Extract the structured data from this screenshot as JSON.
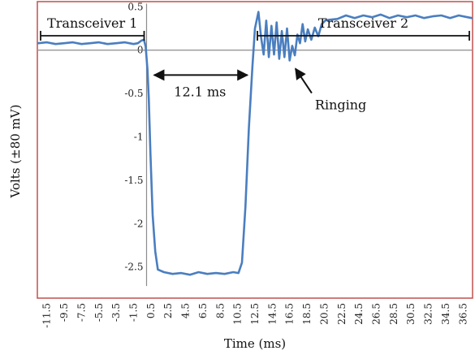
{
  "chart_data": {
    "type": "line",
    "title": "",
    "xlabel": "Time (ms)",
    "ylabel": "Volts (±80 mV)",
    "xlim": [
      -12.5,
      37.5
    ],
    "ylim": [
      -2.85,
      0.55
    ],
    "y_ticks": [
      0.5,
      0,
      -0.5,
      -1,
      -1.5,
      -2,
      -2.5
    ],
    "y_tick_labels": [
      "0.5",
      "0",
      "-0.5",
      "-1",
      "-1.5",
      "-2",
      "-2.5"
    ],
    "x_ticks": [
      -11.5,
      -9.5,
      -7.5,
      -5.5,
      -3.5,
      -1.5,
      0.5,
      2.5,
      4.5,
      6.5,
      8.5,
      10.5,
      12.5,
      14.5,
      16.5,
      18.5,
      20.5,
      22.5,
      24.5,
      26.5,
      28.5,
      30.5,
      32.5,
      34.5,
      36.5
    ],
    "x_tick_labels": [
      "-11.5",
      "-9.5",
      "-7.5",
      "-5.5",
      "-3.5",
      "-1.5",
      "0.5",
      "2.5",
      "4.5",
      "6.5",
      "8.5",
      "10.5",
      "12.5",
      "14.5",
      "16.5",
      "18.5",
      "20.5",
      "22.5",
      "24.5",
      "26.5",
      "28.5",
      "30.5",
      "32.5",
      "34.5",
      "36.5"
    ],
    "grid": false,
    "series": [
      {
        "color": "#4a7ec0",
        "x": [
          -12.5,
          -11.5,
          -10.5,
          -9.5,
          -8.5,
          -7.5,
          -6.5,
          -5.5,
          -4.5,
          -3.5,
          -2.5,
          -1.5,
          -1.0,
          -0.6,
          -0.3,
          -0.1,
          0.1,
          0.25,
          0.45,
          0.7,
          1.0,
          1.3,
          2.0,
          3.0,
          4.0,
          5.0,
          6.0,
          7.0,
          8.0,
          9.0,
          10.0,
          10.6,
          11.0,
          11.4,
          11.8,
          12.2,
          12.5,
          12.9,
          13.2,
          13.5,
          13.8,
          14.1,
          14.4,
          14.7,
          15.0,
          15.3,
          15.6,
          15.9,
          16.2,
          16.5,
          16.8,
          17.1,
          17.4,
          17.7,
          18.0,
          18.3,
          18.6,
          19.0,
          19.4,
          19.8,
          20.2,
          20.6,
          21.0,
          22.0,
          23.0,
          24.0,
          25.0,
          26.0,
          27.0,
          28.0,
          29.0,
          30.0,
          31.0,
          32.0,
          33.0,
          34.0,
          35.0,
          36.0,
          37.0,
          37.5
        ],
        "y": [
          0.08,
          0.09,
          0.07,
          0.08,
          0.09,
          0.07,
          0.08,
          0.09,
          0.07,
          0.08,
          0.09,
          0.07,
          0.08,
          0.11,
          0.12,
          0.04,
          -0.22,
          -0.55,
          -1.2,
          -1.9,
          -2.32,
          -2.53,
          -2.56,
          -2.58,
          -2.57,
          -2.59,
          -2.56,
          -2.58,
          -2.57,
          -2.58,
          -2.56,
          -2.57,
          -2.45,
          -1.8,
          -0.9,
          -0.2,
          0.25,
          0.44,
          0.15,
          -0.05,
          0.34,
          -0.08,
          0.28,
          -0.05,
          0.32,
          -0.1,
          0.22,
          -0.08,
          0.25,
          -0.12,
          0.05,
          -0.06,
          0.18,
          0.08,
          0.3,
          0.1,
          0.24,
          0.12,
          0.26,
          0.16,
          0.3,
          0.34,
          0.35,
          0.36,
          0.4,
          0.37,
          0.4,
          0.38,
          0.41,
          0.37,
          0.4,
          0.38,
          0.4,
          0.37,
          0.39,
          0.4,
          0.37,
          0.4,
          0.38,
          0.37
        ]
      }
    ],
    "annotations": {
      "transceiver1": {
        "label": "Transceiver 1",
        "x_range": [
          -12.5,
          0.0
        ]
      },
      "transceiver2": {
        "label": "Transceiver 2",
        "x_range": [
          12.5,
          37.5
        ]
      },
      "interval": {
        "label": "12.1 ms",
        "x_range": [
          0.5,
          12.2
        ],
        "y": -0.25
      },
      "ringing": {
        "label": "Ringing",
        "point": [
          16.8,
          -0.12
        ]
      }
    }
  }
}
